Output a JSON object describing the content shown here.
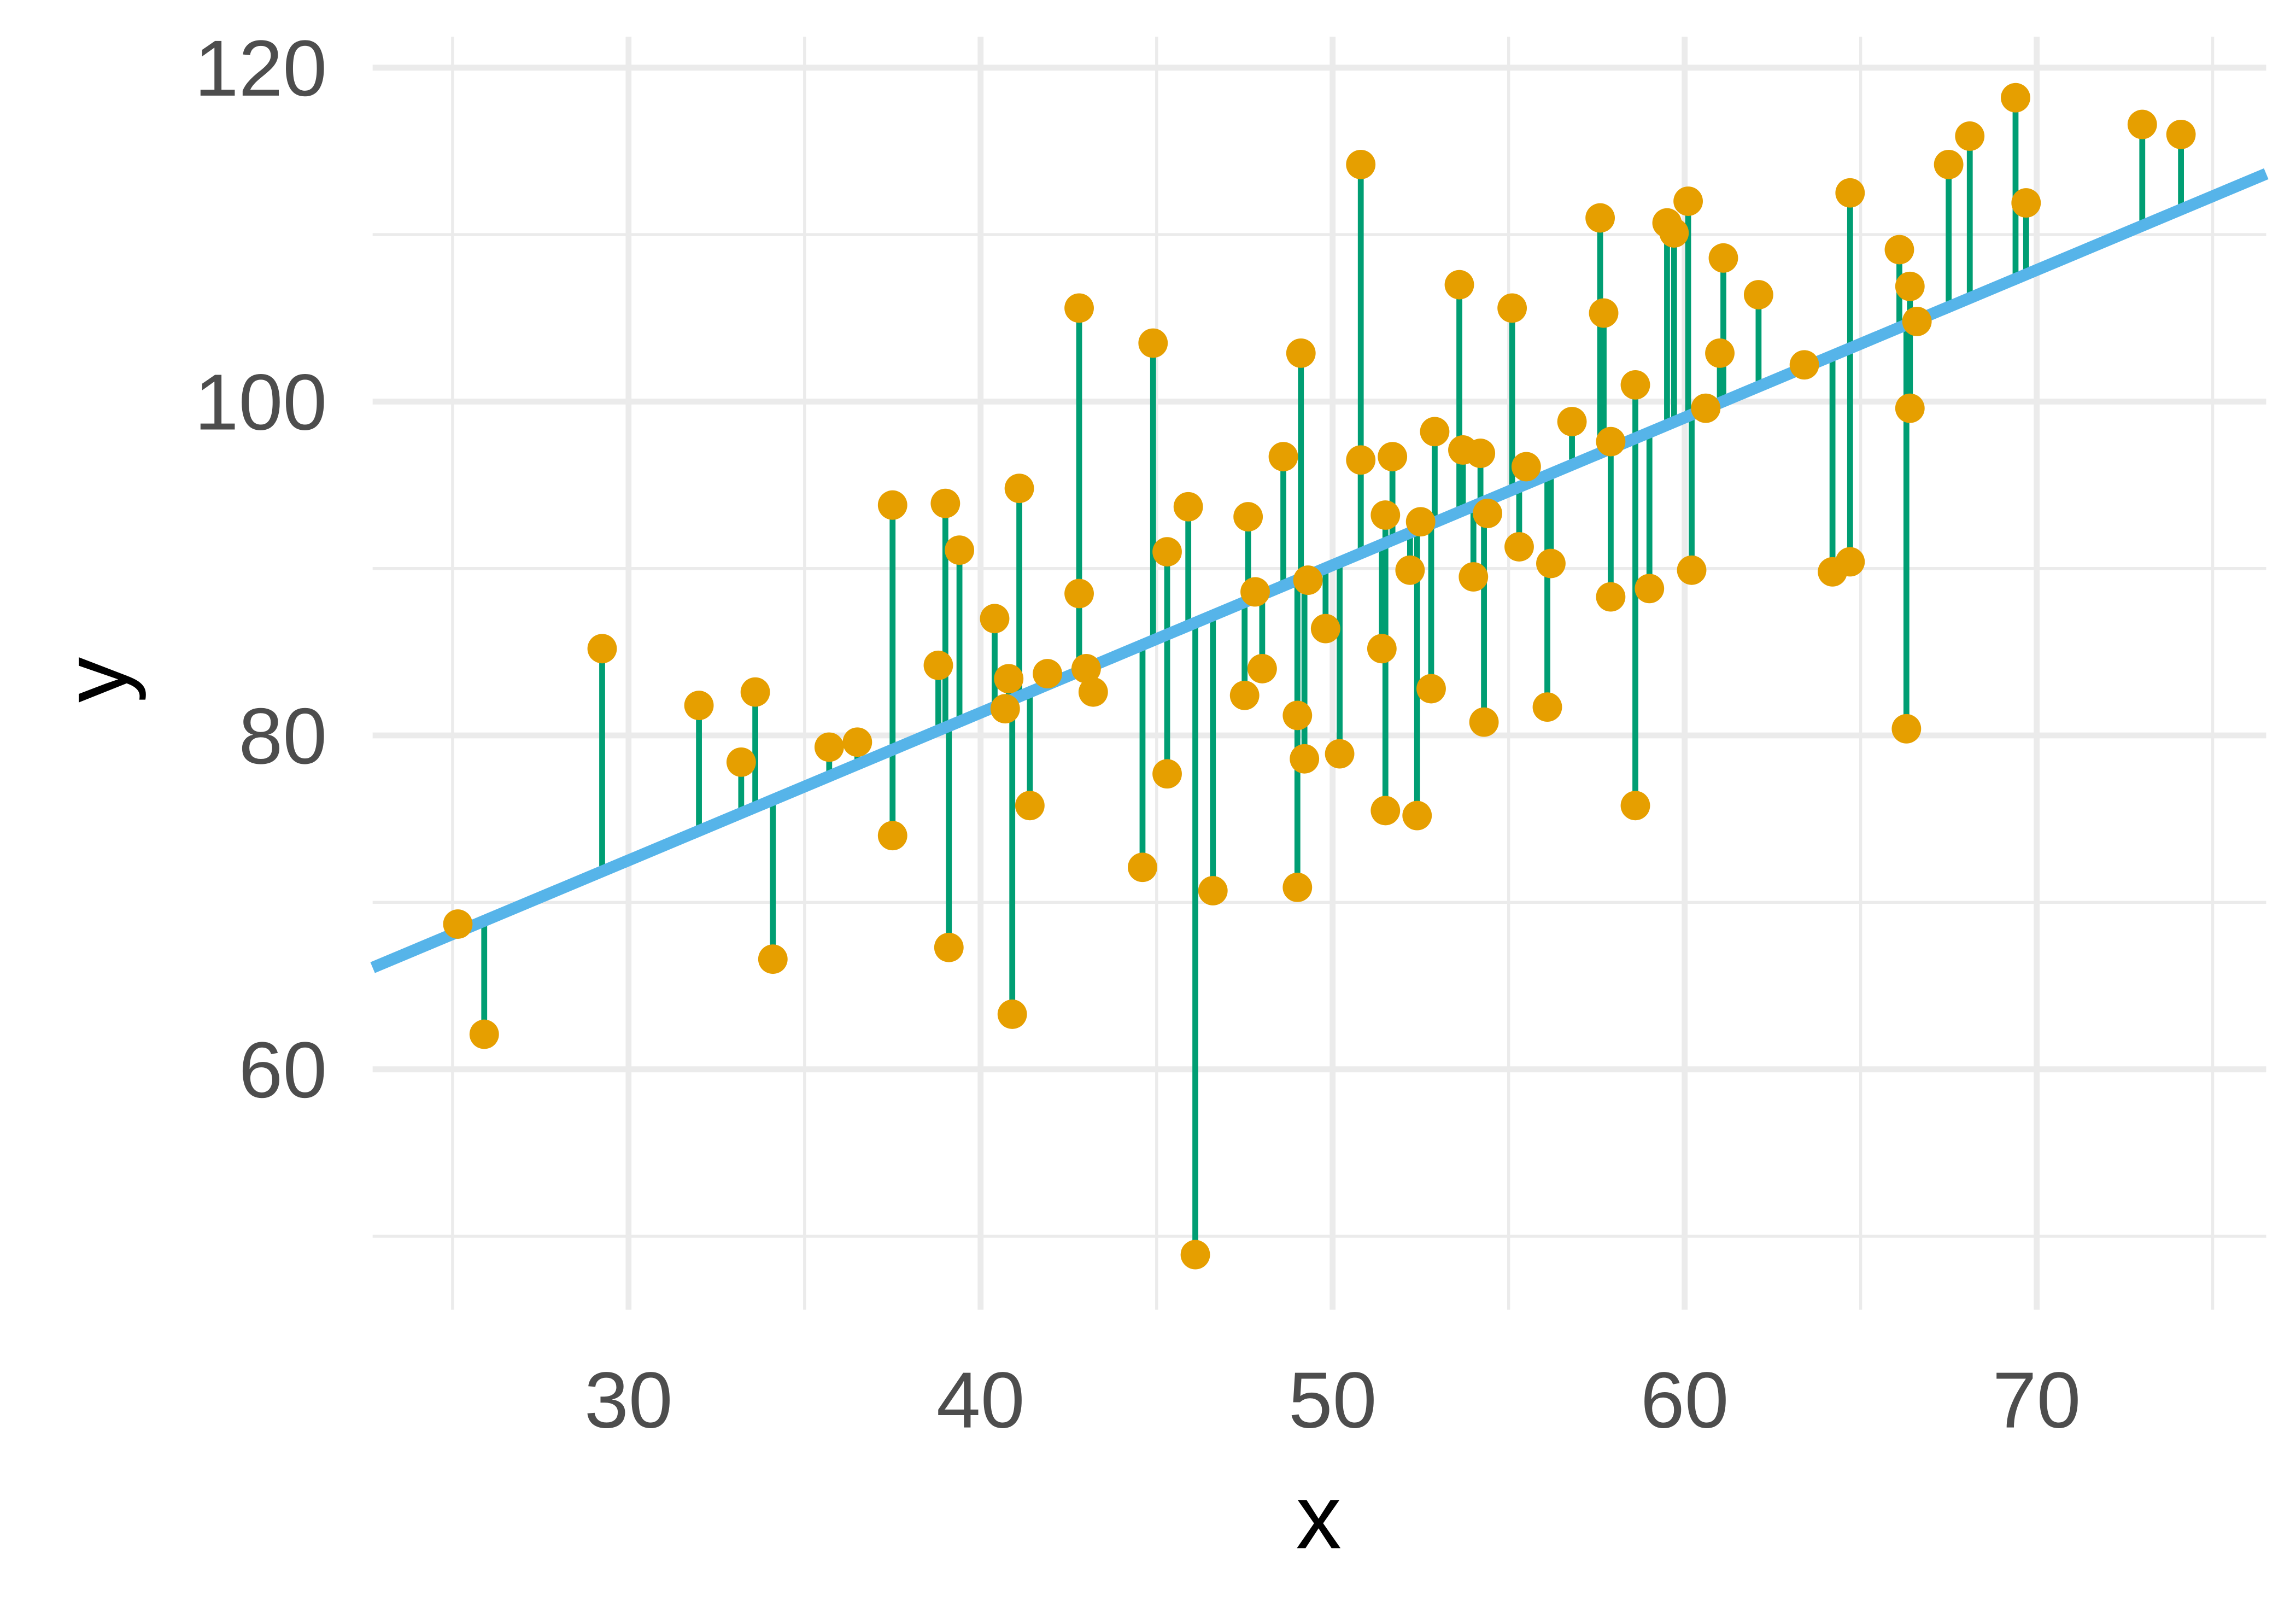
{
  "chart_data": {
    "type": "scatter",
    "title": "",
    "xlabel": "x",
    "ylabel": "y",
    "xlim": [
      22.73,
      76.52
    ],
    "ylim": [
      45.6,
      121.85
    ],
    "x_major_ticks": [
      30,
      40,
      50,
      60,
      70
    ],
    "x_minor_ticks": [
      25,
      35,
      45,
      55,
      65,
      75
    ],
    "y_major_ticks": [
      60,
      80,
      100,
      120
    ],
    "y_minor_ticks": [
      50,
      70,
      90,
      110
    ],
    "grid": true,
    "legend": "none",
    "colors": {
      "points": "#E69F00",
      "residuals": "#009E73",
      "fit_line": "#56B4E9",
      "grid": "#EBEBEB"
    },
    "fit_line": {
      "intercept": 46.0,
      "slope": 0.884
    },
    "points": [
      [
        25.15,
        68.7
      ],
      [
        25.9,
        62.1
      ],
      [
        29.25,
        85.2
      ],
      [
        32.0,
        81.8
      ],
      [
        33.2,
        78.4
      ],
      [
        33.6,
        82.6
      ],
      [
        34.1,
        66.6
      ],
      [
        35.7,
        79.3
      ],
      [
        36.5,
        79.6
      ],
      [
        37.5,
        93.8
      ],
      [
        37.5,
        74.0
      ],
      [
        38.8,
        84.2
      ],
      [
        39.0,
        93.9
      ],
      [
        39.1,
        67.3
      ],
      [
        39.4,
        91.1
      ],
      [
        40.4,
        87.0
      ],
      [
        40.7,
        81.6
      ],
      [
        40.8,
        83.4
      ],
      [
        40.9,
        63.3
      ],
      [
        41.1,
        94.8
      ],
      [
        41.4,
        75.8
      ],
      [
        41.9,
        83.7
      ],
      [
        42.8,
        105.6
      ],
      [
        42.8,
        88.5
      ],
      [
        43.0,
        84.0
      ],
      [
        43.2,
        82.6
      ],
      [
        44.6,
        72.1
      ],
      [
        44.9,
        103.5
      ],
      [
        45.3,
        77.7
      ],
      [
        45.3,
        91.0
      ],
      [
        45.9,
        93.7
      ],
      [
        46.1,
        48.9
      ],
      [
        46.6,
        70.7
      ],
      [
        47.5,
        82.4
      ],
      [
        47.6,
        93.1
      ],
      [
        47.8,
        88.6
      ],
      [
        48.0,
        84.0
      ],
      [
        48.6,
        96.7
      ],
      [
        49.0,
        70.9
      ],
      [
        49.0,
        81.2
      ],
      [
        49.1,
        102.9
      ],
      [
        49.2,
        78.6
      ],
      [
        49.3,
        89.3
      ],
      [
        49.8,
        86.4
      ],
      [
        50.2,
        78.9
      ],
      [
        50.8,
        114.2
      ],
      [
        50.8,
        96.5
      ],
      [
        51.4,
        85.2
      ],
      [
        51.5,
        93.2
      ],
      [
        51.5,
        75.5
      ],
      [
        51.7,
        96.7
      ],
      [
        52.2,
        89.9
      ],
      [
        52.4,
        75.2
      ],
      [
        52.5,
        92.8
      ],
      [
        52.8,
        82.8
      ],
      [
        52.9,
        98.2
      ],
      [
        53.6,
        107.0
      ],
      [
        53.7,
        97.1
      ],
      [
        54.0,
        89.5
      ],
      [
        54.2,
        96.9
      ],
      [
        54.3,
        80.8
      ],
      [
        54.4,
        93.3
      ],
      [
        55.1,
        105.6
      ],
      [
        55.3,
        91.3
      ],
      [
        55.5,
        96.1
      ],
      [
        56.1,
        81.7
      ],
      [
        56.2,
        90.3
      ],
      [
        56.8,
        98.8
      ],
      [
        57.6,
        111.0
      ],
      [
        57.7,
        105.3
      ],
      [
        57.9,
        97.6
      ],
      [
        57.9,
        88.3
      ],
      [
        58.6,
        101.0
      ],
      [
        58.6,
        75.8
      ],
      [
        59.0,
        88.8
      ],
      [
        59.5,
        110.7
      ],
      [
        59.7,
        110.1
      ],
      [
        60.1,
        112.0
      ],
      [
        60.2,
        89.9
      ],
      [
        60.6,
        99.6
      ],
      [
        61.0,
        102.9
      ],
      [
        61.1,
        108.6
      ],
      [
        62.1,
        106.4
      ],
      [
        63.4,
        102.2
      ],
      [
        64.2,
        89.8
      ],
      [
        64.7,
        90.4
      ],
      [
        64.7,
        112.5
      ],
      [
        66.1,
        109.1
      ],
      [
        66.3,
        80.4
      ],
      [
        66.4,
        106.9
      ],
      [
        66.4,
        99.6
      ],
      [
        66.6,
        104.8
      ],
      [
        67.5,
        114.2
      ],
      [
        68.1,
        115.9
      ],
      [
        69.4,
        118.2
      ],
      [
        69.7,
        111.9
      ],
      [
        73.0,
        116.6
      ],
      [
        74.1,
        116.0
      ]
    ]
  }
}
